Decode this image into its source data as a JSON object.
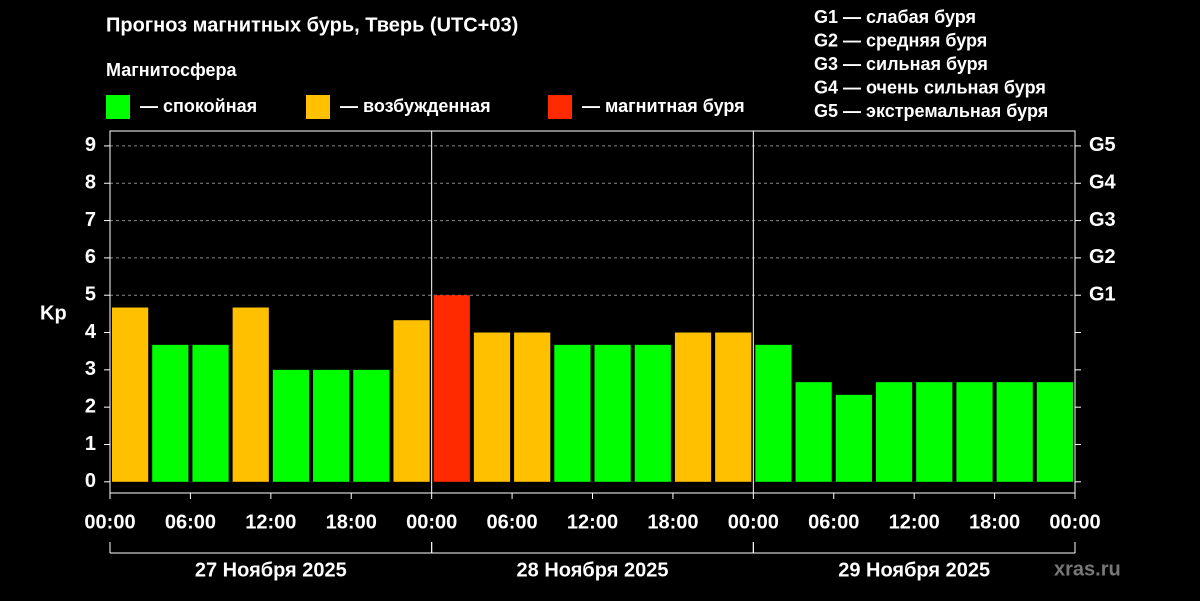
{
  "chart_data": {
    "type": "bar",
    "title": "Прогноз магнитных бурь, Тверь (UTC+03)",
    "legend_title": "Магнитосфера",
    "legend": [
      {
        "label": "— спокойная",
        "color": "#00ff00"
      },
      {
        "label": "— возбужденная",
        "color": "#ffc000"
      },
      {
        "label": "— магнитная буря",
        "color": "#ff2a00"
      }
    ],
    "levels": [
      "G1 — слабая буря",
      "G2 — средняя буря",
      "G3 — сильная буря",
      "G4 — очень сильная буря",
      "G5 — экстремальная буря"
    ],
    "ylabel": "Kp",
    "x": [
      0,
      3,
      6,
      9,
      12,
      15,
      18,
      21,
      24,
      27,
      30,
      33,
      36,
      39,
      42,
      45,
      48,
      51,
      54,
      57,
      60,
      63,
      66,
      69
    ],
    "bar_width": 3,
    "values": [
      4.67,
      3.67,
      3.67,
      4.67,
      3,
      3,
      3,
      4.33,
      5,
      4,
      4,
      3.67,
      3.67,
      3.67,
      4,
      4,
      3.67,
      2.67,
      2.33,
      2.67,
      2.67,
      2.67,
      2.67,
      2.67
    ],
    "colors": [
      "#ffc000",
      "#00ff00",
      "#00ff00",
      "#ffc000",
      "#00ff00",
      "#00ff00",
      "#00ff00",
      "#ffc000",
      "#ff2a00",
      "#ffc000",
      "#ffc000",
      "#00ff00",
      "#00ff00",
      "#00ff00",
      "#ffc000",
      "#ffc000",
      "#00ff00",
      "#00ff00",
      "#00ff00",
      "#00ff00",
      "#00ff00",
      "#00ff00",
      "#00ff00",
      "#00ff00"
    ],
    "xlim": [
      0,
      72
    ],
    "xticks": [
      {
        "value": 0,
        "label": "00:00"
      },
      {
        "value": 6,
        "label": "06:00"
      },
      {
        "value": 12,
        "label": "12:00"
      },
      {
        "value": 18,
        "label": "18:00"
      },
      {
        "value": 24,
        "label": "00:00"
      },
      {
        "value": 30,
        "label": "06:00"
      },
      {
        "value": 36,
        "label": "12:00"
      },
      {
        "value": 42,
        "label": "18:00"
      },
      {
        "value": 48,
        "label": "00:00"
      },
      {
        "value": 54,
        "label": "06:00"
      },
      {
        "value": 60,
        "label": "12:00"
      },
      {
        "value": 66,
        "label": "18:00"
      },
      {
        "value": 72,
        "label": "00:00"
      }
    ],
    "days": [
      {
        "start": 0,
        "end": 24,
        "label": "27 Ноября 2025"
      },
      {
        "start": 24,
        "end": 48,
        "label": "28 Ноября 2025"
      },
      {
        "start": 48,
        "end": 72,
        "label": "29 Ноября 2025"
      }
    ],
    "ylim": [
      -0.3,
      9.4
    ],
    "yticks": [
      0,
      1,
      2,
      3,
      4,
      5,
      6,
      7,
      8,
      9
    ],
    "y2ticks": [
      {
        "value": 5,
        "label": "G1"
      },
      {
        "value": 6,
        "label": "G2"
      },
      {
        "value": 7,
        "label": "G3"
      },
      {
        "value": 8,
        "label": "G4"
      },
      {
        "value": 9,
        "label": "G5"
      }
    ],
    "watermark": "xras.ru"
  }
}
